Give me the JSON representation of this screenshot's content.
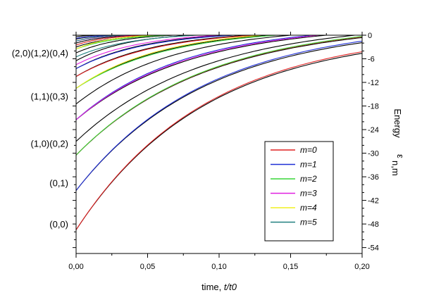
{
  "chart_data": {
    "type": "line",
    "xlabel_prefix": "time, ",
    "xlabel_italic": "t/t0",
    "ylabel": "Energy",
    "ylabel_symbol": "ε",
    "ylabel_subscript": "n,m",
    "xlim": [
      0,
      0.2
    ],
    "ylim": [
      -55.5,
      0
    ],
    "x_ticks": [
      {
        "value": 0,
        "label": "0,00"
      },
      {
        "value": 0.05,
        "label": "0,05"
      },
      {
        "value": 0.1,
        "label": "0,10"
      },
      {
        "value": 0.15,
        "label": "0,15"
      },
      {
        "value": 0.2,
        "label": "0,20"
      }
    ],
    "y_ticks": [
      {
        "value": 0,
        "label": "0"
      },
      {
        "value": -6,
        "label": "-6"
      },
      {
        "value": -12,
        "label": "-12"
      },
      {
        "value": -18,
        "label": "-18"
      },
      {
        "value": -24,
        "label": "-24"
      },
      {
        "value": -30,
        "label": "-30"
      },
      {
        "value": -36,
        "label": "-36"
      },
      {
        "value": -42,
        "label": "-42"
      },
      {
        "value": -48,
        "label": "-48"
      },
      {
        "value": -54,
        "label": "-54"
      }
    ],
    "state_labels": [
      {
        "text": "(0,0)",
        "y": -48
      },
      {
        "text": "(0,1)",
        "y": -37.5
      },
      {
        "text": "(1,0)(0,2)",
        "y": -27.5
      },
      {
        "text": "(1,1)(0,3)",
        "y": -15.5
      },
      {
        "text": "(2,0)(1,2)(0,4)",
        "y": -4.5
      }
    ],
    "legend": {
      "position": "bottom-right",
      "entries": [
        {
          "label": "m=0",
          "color": "#e02020"
        },
        {
          "label": "m=1",
          "color": "#1f2fd6"
        },
        {
          "label": "m=2",
          "color": "#39d639"
        },
        {
          "label": "m=3",
          "color": "#e020e0"
        },
        {
          "label": "m=4",
          "color": "#f0f020"
        },
        {
          "label": "m=5",
          "color": "#208080"
        }
      ]
    },
    "series": [
      {
        "m": 0,
        "color": "#e02020",
        "curves": [
          {
            "y0": -49.5,
            "x_end": 0.2,
            "y_end": -4.2
          },
          {
            "y0": -30.5,
            "x_end": 0.2,
            "y_end": -0.4
          },
          {
            "y0": -10.5,
            "x_end": 0.125,
            "y_end": 0
          },
          {
            "y0": -2.5,
            "x_end": 0.05,
            "y_end": 0
          }
        ]
      },
      {
        "m": 1,
        "color": "#1f2fd6",
        "curves": [
          {
            "y0": -39.5,
            "x_end": 0.2,
            "y_end": -1.5
          },
          {
            "y0": -21.5,
            "x_end": 0.165,
            "y_end": 0
          },
          {
            "y0": -8.5,
            "x_end": 0.11,
            "y_end": 0
          },
          {
            "y0": -0.8,
            "x_end": 0.03,
            "y_end": 0
          }
        ]
      },
      {
        "m": 2,
        "color": "#39d639",
        "curves": [
          {
            "y0": -30.5,
            "x_end": 0.2,
            "y_end": -0.3
          },
          {
            "y0": -13.5,
            "x_end": 0.14,
            "y_end": 0
          },
          {
            "y0": -3.5,
            "x_end": 0.065,
            "y_end": 0
          }
        ]
      },
      {
        "m": 3,
        "color": "#e020e0",
        "curves": [
          {
            "y0": -21.5,
            "x_end": 0.17,
            "y_end": 0
          },
          {
            "y0": -7.5,
            "x_end": 0.1,
            "y_end": 0
          },
          {
            "y0": -1.5,
            "x_end": 0.04,
            "y_end": 0
          }
        ]
      },
      {
        "m": 4,
        "color": "#f0f020",
        "curves": [
          {
            "y0": -13.5,
            "x_end": 0.13,
            "y_end": 0
          },
          {
            "y0": -3.5,
            "x_end": 0.055,
            "y_end": 0
          }
        ]
      },
      {
        "m": 5,
        "color": "#208080",
        "curves": [
          {
            "y0": -5.5,
            "x_end": 0.085,
            "y_end": 0
          },
          {
            "y0": -1.5,
            "x_end": 0.035,
            "y_end": 0
          }
        ]
      },
      {
        "m": null,
        "color": "#000000",
        "curves": [
          {
            "y0": -49.5,
            "x_end": 0.2,
            "y_end": -4.6
          },
          {
            "y0": -39.5,
            "x_end": 0.2,
            "y_end": -1.9
          },
          {
            "y0": -30.5,
            "x_end": 0.2,
            "y_end": -0.6
          },
          {
            "y0": -27.0,
            "x_end": 0.195,
            "y_end": 0
          },
          {
            "y0": -21.5,
            "x_end": 0.175,
            "y_end": 0
          },
          {
            "y0": -17.5,
            "x_end": 0.15,
            "y_end": 0
          },
          {
            "y0": -13.5,
            "x_end": 0.135,
            "y_end": 0
          },
          {
            "y0": -10.5,
            "x_end": 0.12,
            "y_end": 0
          },
          {
            "y0": -8.5,
            "x_end": 0.105,
            "y_end": 0
          },
          {
            "y0": -6.5,
            "x_end": 0.08,
            "y_end": 0
          },
          {
            "y0": -4.5,
            "x_end": 0.068,
            "y_end": 0
          },
          {
            "y0": -3.0,
            "x_end": 0.06,
            "y_end": 0
          },
          {
            "y0": -2.0,
            "x_end": 0.045,
            "y_end": 0
          },
          {
            "y0": -1.0,
            "x_end": 0.03,
            "y_end": 0
          },
          {
            "y0": -0.4,
            "x_end": 0.018,
            "y_end": 0
          }
        ]
      }
    ]
  }
}
